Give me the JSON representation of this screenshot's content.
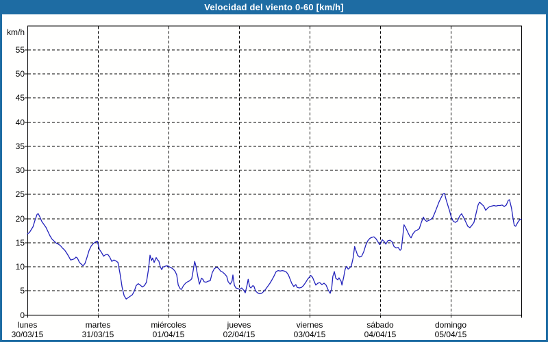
{
  "window": {
    "title": "Velocidad del viento 0-60 [km/h]"
  },
  "colors": {
    "frame": "#1e6ca3",
    "line": "#2222bb",
    "grid": "#000000",
    "text": "#000000",
    "background": "#ffffff"
  },
  "chart_data": {
    "type": "line",
    "title": "Velocidad del viento 0-60 [km/h]",
    "ylabel": "km/h",
    "ylim": [
      0,
      60
    ],
    "y_ticks": [
      0,
      5,
      10,
      15,
      20,
      25,
      30,
      35,
      40,
      45,
      50,
      55
    ],
    "x_unit": "hours",
    "xlim_hours": [
      0,
      168
    ],
    "x_day_boundaries_hours": [
      0,
      24,
      48,
      72,
      96,
      120,
      144,
      168
    ],
    "grid": "dashed",
    "legend": "none",
    "x_labels": [
      {
        "day": "lunes",
        "date": "30/03/15"
      },
      {
        "day": "martes",
        "date": "31/03/15"
      },
      {
        "day": "miércoles",
        "date": "01/04/15"
      },
      {
        "day": "jueves",
        "date": "02/04/15"
      },
      {
        "day": "viernes",
        "date": "03/04/15"
      },
      {
        "day": "sábado",
        "date": "04/04/15"
      },
      {
        "day": "domingo",
        "date": "05/04/15"
      }
    ],
    "series": [
      {
        "name": "Velocidad del viento",
        "color": "#2222bb",
        "points": [
          [
            0,
            16.8
          ],
          [
            0.7,
            17.1
          ],
          [
            1.4,
            17.8
          ],
          [
            1.9,
            18.3
          ],
          [
            2.6,
            19.7
          ],
          [
            3.3,
            20.9
          ],
          [
            3.7,
            21
          ],
          [
            4.2,
            20.4
          ],
          [
            4.9,
            19.4
          ],
          [
            5.6,
            18.8
          ],
          [
            6.3,
            18.2
          ],
          [
            7,
            17.3
          ],
          [
            7.7,
            16.4
          ],
          [
            8.4,
            15.7
          ],
          [
            9.1,
            15.3
          ],
          [
            9.8,
            14.9
          ],
          [
            10.5,
            14.7
          ],
          [
            11.2,
            14.4
          ],
          [
            11.9,
            13.9
          ],
          [
            12.6,
            13.5
          ],
          [
            13.3,
            12.9
          ],
          [
            14,
            12.2
          ],
          [
            14.7,
            11.4
          ],
          [
            15.4,
            11.5
          ],
          [
            16.1,
            11.7
          ],
          [
            16.5,
            12
          ],
          [
            17,
            11.8
          ],
          [
            17.7,
            10.9
          ],
          [
            18.4,
            10.5
          ],
          [
            18.9,
            10.2
          ],
          [
            19.6,
            10.7
          ],
          [
            20.3,
            12
          ],
          [
            21,
            13.4
          ],
          [
            21.7,
            14.3
          ],
          [
            22.4,
            14.8
          ],
          [
            23.1,
            15.1
          ],
          [
            23.8,
            15.3
          ],
          [
            24.5,
            13.6
          ],
          [
            25.2,
            13
          ],
          [
            25.9,
            12.2
          ],
          [
            26.6,
            12.5
          ],
          [
            27.3,
            12.6
          ],
          [
            28,
            12
          ],
          [
            28.7,
            11.1
          ],
          [
            29.4,
            11.4
          ],
          [
            30.1,
            11.2
          ],
          [
            30.8,
            10.9
          ],
          [
            31.5,
            8.6
          ],
          [
            32.2,
            5.8
          ],
          [
            32.9,
            4
          ],
          [
            33.6,
            3.3
          ],
          [
            34.3,
            3.6
          ],
          [
            35,
            3.9
          ],
          [
            35.7,
            4.2
          ],
          [
            36.4,
            5
          ],
          [
            37,
            6.1
          ],
          [
            37.7,
            6.5
          ],
          [
            38.4,
            6.2
          ],
          [
            39.1,
            5.8
          ],
          [
            39.8,
            6.1
          ],
          [
            40.5,
            6.8
          ],
          [
            41.2,
            9.5
          ],
          [
            41.7,
            12.4
          ],
          [
            42.2,
            11.3
          ],
          [
            42.6,
            11.8
          ],
          [
            43.1,
            10.9
          ],
          [
            43.8,
            11.9
          ],
          [
            44.3,
            11.4
          ],
          [
            44.7,
            11.2
          ],
          [
            45.2,
            10
          ],
          [
            45.7,
            9.4
          ],
          [
            46.1,
            9.9
          ],
          [
            46.8,
            10.1
          ],
          [
            47.5,
            10.2
          ],
          [
            48.2,
            10
          ],
          [
            48.9,
            9.8
          ],
          [
            49.6,
            9.5
          ],
          [
            50.3,
            9
          ],
          [
            50.8,
            8.3
          ],
          [
            51.3,
            6.2
          ],
          [
            52,
            5.4
          ],
          [
            52.4,
            5.3
          ],
          [
            53.1,
            6.1
          ],
          [
            53.8,
            6.6
          ],
          [
            54.5,
            6.9
          ],
          [
            55.2,
            7.1
          ],
          [
            55.9,
            7.5
          ],
          [
            56.4,
            9.2
          ],
          [
            56.9,
            11.1
          ],
          [
            57.3,
            10.2
          ],
          [
            58,
            7.9
          ],
          [
            58.5,
            6.4
          ],
          [
            59.2,
            7.6
          ],
          [
            59.7,
            7.4
          ],
          [
            60.1,
            6.9
          ],
          [
            60.8,
            6.8
          ],
          [
            61.5,
            7
          ],
          [
            62.2,
            7.1
          ],
          [
            62.9,
            8.8
          ],
          [
            63.6,
            9.6
          ],
          [
            64.3,
            9.9
          ],
          [
            65,
            9.7
          ],
          [
            65.7,
            9.1
          ],
          [
            66.4,
            8.9
          ],
          [
            67.1,
            8.5
          ],
          [
            67.8,
            8
          ],
          [
            68.3,
            6.9
          ],
          [
            69,
            6.4
          ],
          [
            69.6,
            7
          ],
          [
            69.9,
            8.3
          ],
          [
            70.4,
            6.2
          ],
          [
            70.9,
            5.6
          ],
          [
            71.5,
            5.5
          ],
          [
            72.2,
            5.3
          ],
          [
            72.9,
            5.6
          ],
          [
            73.6,
            5.1
          ],
          [
            74.1,
            4.6
          ],
          [
            74.8,
            6.4
          ],
          [
            75.1,
            7.4
          ],
          [
            75.6,
            5.9
          ],
          [
            76,
            5.6
          ],
          [
            76.7,
            6.1
          ],
          [
            77.1,
            5.9
          ],
          [
            77.6,
            5
          ],
          [
            78.3,
            4.6
          ],
          [
            79,
            4.4
          ],
          [
            79.7,
            4.5
          ],
          [
            80.4,
            4.9
          ],
          [
            81.1,
            5.4
          ],
          [
            81.8,
            6
          ],
          [
            82.5,
            6.6
          ],
          [
            83.2,
            7.3
          ],
          [
            83.9,
            8.1
          ],
          [
            84.6,
            9
          ],
          [
            85.3,
            9.2
          ],
          [
            86,
            9.1
          ],
          [
            86.7,
            9.2
          ],
          [
            87.4,
            9.1
          ],
          [
            88.1,
            8.9
          ],
          [
            88.8,
            8.3
          ],
          [
            89.5,
            7.2
          ],
          [
            89.9,
            6.6
          ],
          [
            90.6,
            5.9
          ],
          [
            91.3,
            6.3
          ],
          [
            91.8,
            5.7
          ],
          [
            92.5,
            5.6
          ],
          [
            93.2,
            5.7
          ],
          [
            93.9,
            6.1
          ],
          [
            94.6,
            6.7
          ],
          [
            95.3,
            7.4
          ],
          [
            96,
            7.9
          ],
          [
            96.4,
            8.2
          ],
          [
            97,
            7.8
          ],
          [
            97.6,
            6.9
          ],
          [
            98.1,
            6.2
          ],
          [
            98.8,
            6.6
          ],
          [
            99.5,
            6.7
          ],
          [
            100.2,
            6.3
          ],
          [
            100.9,
            6.6
          ],
          [
            101.6,
            6.2
          ],
          [
            102.3,
            5.2
          ],
          [
            103,
            4.5
          ],
          [
            103.5,
            5.5
          ],
          [
            103.9,
            8
          ],
          [
            104.4,
            9
          ],
          [
            104.9,
            7.6
          ],
          [
            105.6,
            7.3
          ],
          [
            106,
            7.7
          ],
          [
            106.7,
            7
          ],
          [
            107,
            6.2
          ],
          [
            107.6,
            7.9
          ],
          [
            108.1,
            9.5
          ],
          [
            108.6,
            10.1
          ],
          [
            109.1,
            9.5
          ],
          [
            109.7,
            9.8
          ],
          [
            110.2,
            10.2
          ],
          [
            110.8,
            11.8
          ],
          [
            111.3,
            14.2
          ],
          [
            111.8,
            13.3
          ],
          [
            112.3,
            12.4
          ],
          [
            113,
            12
          ],
          [
            113.7,
            12.2
          ],
          [
            114.4,
            13.1
          ],
          [
            115.1,
            14.5
          ],
          [
            115.8,
            15.4
          ],
          [
            116.5,
            15.9
          ],
          [
            117.2,
            16.1
          ],
          [
            117.9,
            16.2
          ],
          [
            118.6,
            15.8
          ],
          [
            119.2,
            15.2
          ],
          [
            119.8,
            14.6
          ],
          [
            120.3,
            15
          ],
          [
            120.7,
            15.6
          ],
          [
            121.4,
            15.2
          ],
          [
            121.9,
            14.7
          ],
          [
            122.6,
            15.4
          ],
          [
            123.3,
            15.5
          ],
          [
            124,
            15.2
          ],
          [
            124.7,
            14.2
          ],
          [
            125.4,
            13.9
          ],
          [
            126.1,
            14
          ],
          [
            126.8,
            13.4
          ],
          [
            127.2,
            13.7
          ],
          [
            127.7,
            16.3
          ],
          [
            128.1,
            18.7
          ],
          [
            128.6,
            18.2
          ],
          [
            129.3,
            17.3
          ],
          [
            130,
            16.4
          ],
          [
            130.5,
            16
          ],
          [
            131.2,
            16.9
          ],
          [
            131.9,
            17.4
          ],
          [
            132.6,
            17.6
          ],
          [
            133.3,
            17.9
          ],
          [
            134,
            19.2
          ],
          [
            134.7,
            20.3
          ],
          [
            135.1,
            19.8
          ],
          [
            135.8,
            19.4
          ],
          [
            136.5,
            19.6
          ],
          [
            137.2,
            19.8
          ],
          [
            137.9,
            20.2
          ],
          [
            138.6,
            21.2
          ],
          [
            139.3,
            22.3
          ],
          [
            140,
            23.4
          ],
          [
            140.7,
            24.3
          ],
          [
            141.4,
            25.1
          ],
          [
            141.9,
            25.2
          ],
          [
            142.4,
            24
          ],
          [
            143.1,
            22.6
          ],
          [
            143.7,
            21.4
          ],
          [
            144.2,
            20.2
          ],
          [
            144.9,
            19.4
          ],
          [
            145.6,
            19.2
          ],
          [
            146.3,
            19.5
          ],
          [
            147,
            20.5
          ],
          [
            147.7,
            21
          ],
          [
            148.4,
            20.2
          ],
          [
            149.1,
            19.3
          ],
          [
            149.8,
            18.4
          ],
          [
            150.5,
            18.1
          ],
          [
            151.2,
            18.6
          ],
          [
            151.9,
            19.2
          ],
          [
            152.6,
            21
          ],
          [
            153.3,
            22.8
          ],
          [
            153.8,
            23.4
          ],
          [
            154.5,
            23
          ],
          [
            155.2,
            22.6
          ],
          [
            155.9,
            21.7
          ],
          [
            156.6,
            22.2
          ],
          [
            157.3,
            22.5
          ],
          [
            158,
            22.6
          ],
          [
            158.7,
            22.7
          ],
          [
            159.4,
            22.6
          ],
          [
            160.1,
            22.7
          ],
          [
            160.8,
            22.7
          ],
          [
            161.5,
            22.8
          ],
          [
            162.2,
            22.5
          ],
          [
            162.9,
            22.8
          ],
          [
            163.6,
            23.8
          ],
          [
            164,
            23.9
          ],
          [
            164.7,
            22.1
          ],
          [
            165.2,
            20
          ],
          [
            165.6,
            18.6
          ],
          [
            166.1,
            18.4
          ],
          [
            166.8,
            19.2
          ],
          [
            167.5,
            19.8
          ],
          [
            168,
            19.9
          ]
        ]
      }
    ]
  }
}
